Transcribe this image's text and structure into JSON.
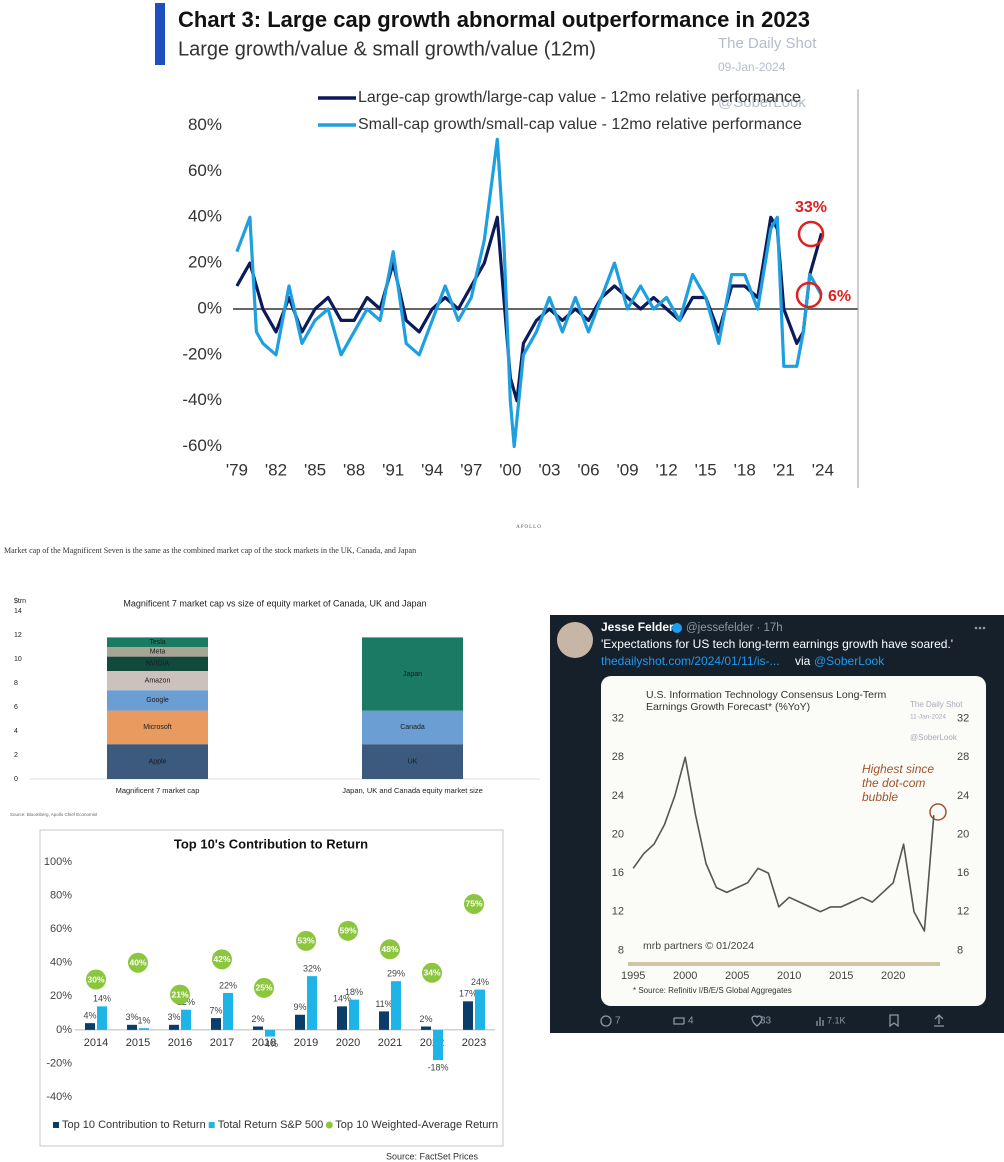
{
  "chart_data": [
    {
      "type": "line",
      "title": "Chart 3: Large cap growth abnormal outperformance in 2023",
      "subtitle": "Large growth/value & small growth/value (12m)",
      "watermark": [
        "The Daily Shot",
        "09-Jan-2024",
        "@SoberLook"
      ],
      "series": [
        {
          "name": "Large-cap growth/large-cap value - 12mo relative performance",
          "color": "#0b1a5c",
          "x": [
            1979,
            1980,
            1981,
            1982,
            1983,
            1984,
            1985,
            1986,
            1987,
            1988,
            1989,
            1990,
            1991,
            1992,
            1993,
            1994,
            1995,
            1996,
            1997,
            1998,
            1999,
            2000,
            2000.5,
            2001,
            2002,
            2003,
            2004,
            2005,
            2006,
            2007,
            2008,
            2009,
            2010,
            2011,
            2012,
            2013,
            2014,
            2015,
            2016,
            2017,
            2018,
            2019,
            2020,
            2020.5,
            2021,
            2022,
            2022.5,
            2023,
            2023.9
          ],
          "values": [
            10,
            20,
            0,
            -10,
            5,
            -10,
            0,
            5,
            -5,
            -5,
            5,
            0,
            20,
            -5,
            -10,
            0,
            5,
            0,
            10,
            20,
            40,
            -30,
            -40,
            -15,
            -5,
            0,
            -5,
            0,
            -5,
            5,
            10,
            5,
            0,
            5,
            0,
            -5,
            5,
            5,
            -10,
            10,
            10,
            5,
            40,
            35,
            0,
            -15,
            -10,
            15,
            33
          ]
        },
        {
          "name": "Small-cap growth/small-cap value - 12mo relative performance",
          "color": "#1e9fe0",
          "x": [
            1979,
            1980,
            1980.5,
            1981,
            1982,
            1983,
            1984,
            1985,
            1986,
            1987,
            1988,
            1989,
            1990,
            1991,
            1992,
            1993,
            1994,
            1995,
            1996,
            1997,
            1998,
            1999,
            1999.5,
            2000,
            2000.3,
            2001,
            2002,
            2003,
            2004,
            2005,
            2006,
            2007,
            2008,
            2009,
            2010,
            2011,
            2012,
            2013,
            2014,
            2015,
            2016,
            2017,
            2018,
            2019,
            2020,
            2020.5,
            2021,
            2022,
            2022.5,
            2023,
            2023.9
          ],
          "values": [
            25,
            40,
            -10,
            -15,
            -20,
            10,
            -15,
            -5,
            0,
            -20,
            -10,
            0,
            -5,
            25,
            -15,
            -20,
            -5,
            10,
            -5,
            5,
            30,
            74,
            30,
            -40,
            -60,
            -20,
            -10,
            5,
            -10,
            5,
            -10,
            5,
            20,
            0,
            10,
            0,
            5,
            -5,
            15,
            5,
            -15,
            15,
            15,
            0,
            35,
            40,
            -25,
            -25,
            -10,
            15,
            6
          ]
        }
      ],
      "annotations": [
        "33%",
        "6%"
      ],
      "xlim": [
        1978.7,
        2026.7
      ],
      "xticks": [
        {
          "value": 1979,
          "label": "'79"
        },
        {
          "value": 1982,
          "label": "'82"
        },
        {
          "value": 1985,
          "label": "'85"
        },
        {
          "value": 1988,
          "label": "'88"
        },
        {
          "value": 1991,
          "label": "'91"
        },
        {
          "value": 1994,
          "label": "'94"
        },
        {
          "value": 1997,
          "label": "'97"
        },
        {
          "value": 2000,
          "label": "'00"
        },
        {
          "value": 2003,
          "label": "'03"
        },
        {
          "value": 2006,
          "label": "'06"
        },
        {
          "value": 2009,
          "label": "'09"
        },
        {
          "value": 2012,
          "label": "'12"
        },
        {
          "value": 2015,
          "label": "'15"
        },
        {
          "value": 2018,
          "label": "'18"
        },
        {
          "value": 2021,
          "label": "'21"
        },
        {
          "value": 2024,
          "label": "'24"
        }
      ],
      "ylim": [
        -65,
        87
      ],
      "yticks": [
        {
          "value": 80,
          "label": "80%"
        },
        {
          "value": 60,
          "label": "60%"
        },
        {
          "value": 40,
          "label": "40%"
        },
        {
          "value": 20,
          "label": "20%"
        },
        {
          "value": 0,
          "label": "0%"
        },
        {
          "value": -20,
          "label": "-20%"
        },
        {
          "value": -40,
          "label": "-40%"
        },
        {
          "value": -60,
          "label": "-60%"
        }
      ]
    },
    {
      "type": "stacked_bar",
      "title": "Magnificent 7 market cap vs size of equity market of Canada, UK and Japan",
      "y_label": "$trn",
      "categories": [
        "Magnificent 7 market cap",
        "Japan, UK and Canada equity market size"
      ],
      "series": [
        {
          "name": "Apple",
          "color": "#3b5a7e",
          "values": [
            2.9,
            null
          ]
        },
        {
          "name": "Microsoft",
          "color": "#e89a5f",
          "values": [
            2.8,
            null
          ]
        },
        {
          "name": "Google",
          "color": "#6b9fd4",
          "values": [
            1.7,
            null
          ]
        },
        {
          "name": "Amazon",
          "color": "#cdc2bb",
          "values": [
            1.6,
            null
          ]
        },
        {
          "name": "NVIDIA",
          "color": "#114a3c",
          "values": [
            1.2,
            null
          ]
        },
        {
          "name": "Meta",
          "color": "#a9a595",
          "values": [
            0.8,
            null
          ]
        },
        {
          "name": "Tesla",
          "color": "#1a7a62",
          "values": [
            0.8,
            null
          ]
        },
        {
          "name": "UK",
          "color": "#3b5a7e",
          "values": [
            null,
            2.9
          ]
        },
        {
          "name": "Canada",
          "color": "#6b9fd4",
          "values": [
            null,
            2.8
          ]
        },
        {
          "name": "Japan",
          "color": "#1a7a62",
          "values": [
            null,
            6.1
          ]
        }
      ],
      "ylim": [
        0,
        14
      ],
      "yticks": [
        0,
        2,
        4,
        6,
        8,
        10,
        12,
        14
      ],
      "source": "Source: Bloomberg, Apollo Chief Economist"
    },
    {
      "type": "bar",
      "title": "Top 10's Contribution to Return",
      "categories": [
        "2014",
        "2015",
        "2016",
        "2017",
        "2018",
        "2019",
        "2020",
        "2021",
        "2022",
        "2023"
      ],
      "series": [
        {
          "name": "Top 10 Contribution to Return",
          "kind": "bar",
          "color": "#0b3d6b",
          "values": [
            4,
            3,
            3,
            7,
            2,
            9,
            14,
            11,
            2,
            17
          ],
          "value_labels": [
            "4%",
            "3%",
            "3%",
            "7%",
            "2%",
            "9%",
            "14%",
            "11%",
            "2%",
            "17%"
          ]
        },
        {
          "name": "Total Return S&P 500",
          "kind": "bar",
          "color": "#1eb4e8",
          "values": [
            14,
            1,
            12,
            22,
            -4,
            32,
            18,
            29,
            -18,
            24
          ],
          "value_labels": [
            "14%",
            "1%",
            "12%",
            "22%",
            "-4%",
            "32%",
            "18%",
            "29%",
            "-18%",
            "24%"
          ]
        },
        {
          "name": "Top 10 Weighted-Average Return",
          "kind": "dot",
          "color": "#8cc63f",
          "values": [
            30,
            40,
            21,
            42,
            25,
            53,
            59,
            48,
            34,
            75
          ],
          "value_labels": [
            "30%",
            "40%",
            "21%",
            "42%",
            "25%",
            "53%",
            "59%",
            "48%",
            "34%",
            "75%"
          ]
        }
      ],
      "ylim": [
        -40,
        100
      ],
      "yticks": [
        {
          "value": 100,
          "label": "100%"
        },
        {
          "value": 80,
          "label": "80%"
        },
        {
          "value": 60,
          "label": "60%"
        },
        {
          "value": 40,
          "label": "40%"
        },
        {
          "value": 20,
          "label": "20%"
        },
        {
          "value": 0,
          "label": "0%"
        },
        {
          "value": -20,
          "label": "-20%"
        },
        {
          "value": -40,
          "label": "-40%"
        }
      ],
      "source": "Source: FactSet Prices"
    },
    {
      "type": "line",
      "title": "U.S. Information Technology Consensus Long-Term Earnings Growth Forecast* (%YoY)",
      "watermark": [
        "The Daily Shot",
        "11-Jan-2024",
        "@SoberLook"
      ],
      "annotation": "Highest since the dot-com bubble",
      "brand": "mrb partners © 01/2024",
      "source": "* Source: Refinitiv I/B/E/S Global Aggregates",
      "series": [
        {
          "color": "#555555",
          "x": [
            1995,
            1996,
            1997,
            1998,
            1999,
            2000,
            2001,
            2002,
            2003,
            2004,
            2005,
            2006,
            2007,
            2008,
            2009,
            2010,
            2011,
            2012,
            2013,
            2014,
            2015,
            2016,
            2017,
            2018,
            2019,
            2020,
            2021,
            2022,
            2023,
            2023.9
          ],
          "values": [
            16.5,
            18,
            19,
            21,
            24,
            28,
            22,
            17,
            14.5,
            14,
            14.5,
            15,
            16.5,
            16,
            12.5,
            13.5,
            13,
            12.5,
            12,
            12.5,
            12.5,
            13,
            13.5,
            13,
            14,
            15,
            19,
            12,
            10,
            22
          ]
        }
      ],
      "xlim": [
        1994.5,
        2024.5
      ],
      "xticks": [
        1995,
        2000,
        2005,
        2010,
        2015,
        2020
      ],
      "ylim": [
        7,
        33
      ],
      "yticks": [
        32,
        28,
        24,
        20,
        16,
        12,
        8
      ],
      "y2lim": [
        7,
        33
      ],
      "y2ticks": [
        32,
        28,
        24,
        20,
        16,
        12,
        8
      ]
    }
  ],
  "apollo": "APOLLO",
  "caption": "Market cap of the Magnificent Seven is the same as the combined market cap of the stock markets in the UK, Canada, and Japan",
  "tweet": {
    "name": "Jesse Felder",
    "handle": "@jessefelder · 17h",
    "text": "'Expectations for US tech long-term earnings growth have soared.'",
    "link": "thedailyshot.com/2024/01/11/is-...",
    "via": "via",
    "mention": "@SoberLook",
    "replies": 7,
    "retweets": 4,
    "likes": 33,
    "views": "7.1K"
  }
}
